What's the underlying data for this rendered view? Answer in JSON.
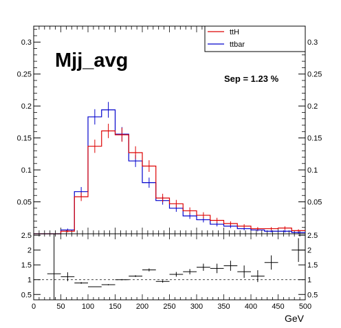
{
  "chart_data": [
    {
      "type": "step",
      "title": "Mjj_avg",
      "annotation": "Sep = 1.23 %",
      "xlim": [
        0,
        500
      ],
      "ylim": [
        0,
        0.325
      ],
      "yticks": [
        0.05,
        0.1,
        0.15,
        0.2,
        0.25,
        0.3
      ],
      "ytick_labels": [
        "0.05",
        "0.1",
        "0.15",
        "0.2",
        "0.25",
        "0.3"
      ],
      "bin_edges": [
        0,
        25,
        50,
        75,
        100,
        125,
        150,
        175,
        200,
        225,
        250,
        275,
        300,
        325,
        350,
        375,
        400,
        425,
        450,
        475,
        500
      ],
      "legend": {
        "position": "top-right"
      },
      "series": [
        {
          "name": "ttH",
          "color": "#dd0000",
          "values": [
            0,
            0,
            0.004,
            0.058,
            0.137,
            0.161,
            0.155,
            0.127,
            0.106,
            0.056,
            0.047,
            0.036,
            0.029,
            0.021,
            0.016,
            0.012,
            0.008,
            0.008,
            0.009,
            0.005
          ]
        },
        {
          "name": "ttbar",
          "color": "#0000cc",
          "values": [
            0,
            0,
            0.006,
            0.066,
            0.183,
            0.194,
            0.156,
            0.114,
            0.08,
            0.052,
            0.04,
            0.028,
            0.022,
            0.015,
            0.012,
            0.008,
            0.006,
            0.004,
            0.004,
            0.002
          ]
        }
      ]
    },
    {
      "type": "ratio",
      "xlabel": "GeV",
      "xlim": [
        0,
        500
      ],
      "ylim": [
        0.32,
        2.55
      ],
      "xticks": [
        0,
        50,
        100,
        150,
        200,
        250,
        300,
        350,
        400,
        450,
        500
      ],
      "xtick_labels": [
        "0",
        "50",
        "100",
        "150",
        "200",
        "250",
        "300",
        "350",
        "400",
        "450",
        "500"
      ],
      "yticks": [
        0.5,
        1,
        1.5,
        2,
        2.5
      ],
      "ytick_labels": [
        "0.5",
        "1",
        "1.5",
        "2",
        "2.5"
      ],
      "reference_line": 1,
      "points": [
        {
          "x": 37.5,
          "y": 1.2,
          "xerr": 12.5,
          "ylo": 0.32,
          "yhi": 2.55
        },
        {
          "x": 62.5,
          "y": 1.1,
          "xerr": 12.5,
          "ylo": 0.95,
          "yhi": 1.25
        },
        {
          "x": 87.5,
          "y": 0.89,
          "xerr": 12.5,
          "ylo": 0.86,
          "yhi": 0.92
        },
        {
          "x": 112.5,
          "y": 0.76,
          "xerr": 12.5,
          "ylo": 0.75,
          "yhi": 0.77
        },
        {
          "x": 137.5,
          "y": 0.83,
          "xerr": 12.5,
          "ylo": 0.81,
          "yhi": 0.85
        },
        {
          "x": 162.5,
          "y": 1.0,
          "xerr": 12.5,
          "ylo": 0.98,
          "yhi": 1.02
        },
        {
          "x": 187.5,
          "y": 1.12,
          "xerr": 12.5,
          "ylo": 1.09,
          "yhi": 1.15
        },
        {
          "x": 212.5,
          "y": 1.33,
          "xerr": 12.5,
          "ylo": 1.28,
          "yhi": 1.38
        },
        {
          "x": 237.5,
          "y": 0.94,
          "xerr": 12.5,
          "ylo": 0.9,
          "yhi": 0.98
        },
        {
          "x": 262.5,
          "y": 1.18,
          "xerr": 12.5,
          "ylo": 1.1,
          "yhi": 1.26
        },
        {
          "x": 287.5,
          "y": 1.27,
          "xerr": 12.5,
          "ylo": 1.18,
          "yhi": 1.36
        },
        {
          "x": 312.5,
          "y": 1.42,
          "xerr": 12.5,
          "ylo": 1.3,
          "yhi": 1.54
        },
        {
          "x": 337.5,
          "y": 1.38,
          "xerr": 12.5,
          "ylo": 1.22,
          "yhi": 1.54
        },
        {
          "x": 362.5,
          "y": 1.47,
          "xerr": 12.5,
          "ylo": 1.3,
          "yhi": 1.64
        },
        {
          "x": 387.5,
          "y": 1.27,
          "xerr": 12.5,
          "ylo": 1.06,
          "yhi": 1.48
        },
        {
          "x": 412.5,
          "y": 1.12,
          "xerr": 12.5,
          "ylo": 0.92,
          "yhi": 1.32
        },
        {
          "x": 437.5,
          "y": 1.58,
          "xerr": 12.5,
          "ylo": 1.34,
          "yhi": 1.82
        },
        {
          "x": 487.5,
          "y": 2.0,
          "xerr": 12.5,
          "ylo": 1.6,
          "yhi": 2.4
        }
      ]
    }
  ]
}
